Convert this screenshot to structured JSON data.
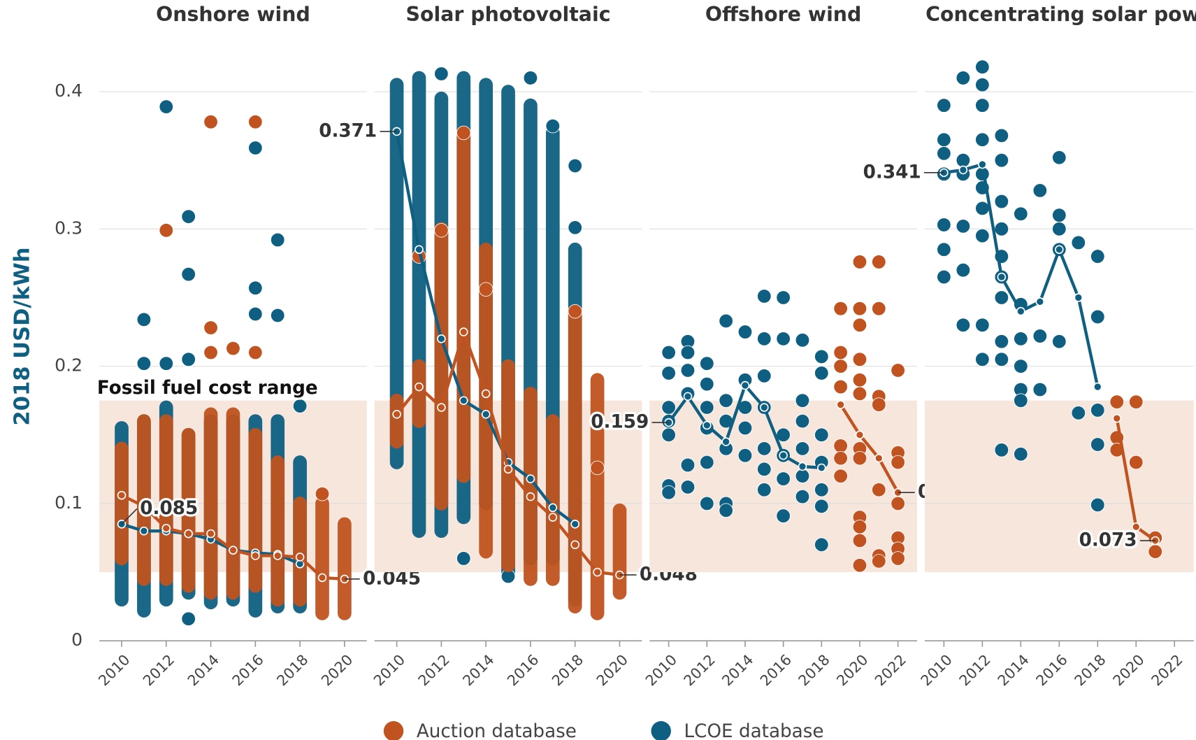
{
  "ylabel": "2018 USD/kWh",
  "ylim": [
    0,
    0.43
  ],
  "yticks": [
    0,
    0.1,
    0.2,
    0.3,
    0.4
  ],
  "grid": true,
  "fossil_range": {
    "label": "Fossil fuel cost range",
    "range": [
      0.05,
      0.175
    ],
    "color": "#f6e6dc"
  },
  "legend": [
    {
      "name": "Auction database",
      "color": "#c0531f"
    },
    {
      "name": "LCOE database",
      "color": "#0e5f82"
    }
  ],
  "chart_data": [
    {
      "type": "scatter",
      "title": "Onshore wind",
      "x": [
        2010,
        2011,
        2012,
        2013,
        2014,
        2015,
        2016,
        2017,
        2018,
        2019,
        2020
      ],
      "xlim": [
        2009,
        2021
      ],
      "xticks": [
        2010,
        2012,
        2014,
        2016,
        2018,
        2020
      ],
      "lcoe_line": [
        0.085,
        0.08,
        0.08,
        0.078,
        0.074,
        0.066,
        0.064,
        0.063,
        0.056,
        null,
        null
      ],
      "auction_line": [
        0.106,
        0.098,
        0.082,
        0.078,
        0.078,
        0.066,
        0.062,
        0.062,
        0.061,
        0.046,
        0.045
      ],
      "lcoe_range": {
        "low": [
          0.03,
          0.022,
          0.03,
          0.035,
          0.028,
          0.03,
          0.022,
          0.025,
          0.025,
          null,
          null
        ],
        "high": [
          0.155,
          0.16,
          0.17,
          0.15,
          0.16,
          0.16,
          0.16,
          0.16,
          0.13,
          null,
          null
        ]
      },
      "auction_range": {
        "low": [
          0.06,
          0.045,
          0.045,
          0.04,
          0.035,
          0.035,
          0.04,
          0.03,
          0.03,
          0.02,
          0.02
        ],
        "high": [
          0.14,
          0.16,
          0.16,
          0.15,
          0.165,
          0.165,
          0.15,
          0.13,
          0.1,
          0.1,
          0.085
        ]
      },
      "lcoe_points": {
        "x": [
          2011,
          2011,
          2012,
          2012,
          2013,
          2013,
          2013,
          2013,
          2016,
          2016,
          2016,
          2017,
          2017,
          2018
        ],
        "y": [
          0.234,
          0.202,
          0.389,
          0.202,
          0.309,
          0.267,
          0.205,
          0.016,
          0.359,
          0.257,
          0.238,
          0.292,
          0.237,
          0.171
        ]
      },
      "auction_points": {
        "x": [
          2012,
          2014,
          2014,
          2014,
          2015,
          2016,
          2016,
          2019
        ],
        "y": [
          0.299,
          0.378,
          0.228,
          0.21,
          0.213,
          0.378,
          0.21,
          0.107
        ]
      }
    },
    {
      "type": "scatter",
      "title": "Solar photovoltaic",
      "x": [
        2010,
        2011,
        2012,
        2013,
        2014,
        2015,
        2016,
        2017,
        2018,
        2019,
        2020
      ],
      "xlim": [
        2009,
        2021
      ],
      "xticks": [
        2010,
        2012,
        2014,
        2016,
        2018,
        2020
      ],
      "lcoe_line": [
        0.371,
        0.285,
        0.22,
        0.175,
        0.165,
        0.13,
        0.118,
        0.097,
        0.085,
        null,
        null
      ],
      "auction_line": [
        0.165,
        0.185,
        0.17,
        0.225,
        0.18,
        0.125,
        0.105,
        0.09,
        0.07,
        0.05,
        0.048
      ],
      "lcoe_range": {
        "low": [
          0.13,
          0.08,
          0.08,
          0.09,
          0.1,
          0.05,
          0.06,
          0.06,
          0.03,
          null,
          null
        ],
        "high": [
          0.405,
          0.41,
          0.395,
          0.41,
          0.405,
          0.4,
          0.39,
          0.37,
          0.285,
          null,
          null
        ]
      },
      "auction_range": {
        "low": [
          0.145,
          0.16,
          0.1,
          0.12,
          0.065,
          0.055,
          0.045,
          0.045,
          0.025,
          0.02,
          0.035
        ],
        "high": [
          0.175,
          0.2,
          0.3,
          0.37,
          0.285,
          0.2,
          0.18,
          0.16,
          0.24,
          0.19,
          0.095
        ]
      },
      "lcoe_points": {
        "x": [
          2012,
          2013,
          2015,
          2016,
          2017,
          2018,
          2018
        ],
        "y": [
          0.413,
          0.06,
          0.047,
          0.41,
          0.375,
          0.346,
          0.301
        ]
      },
      "auction_points": {
        "x": [
          2011,
          2012,
          2013,
          2014,
          2018,
          2019
        ],
        "y": [
          0.28,
          0.299,
          0.37,
          0.256,
          0.24,
          0.126
        ]
      }
    },
    {
      "type": "scatter",
      "title": "Offshore wind",
      "x": [
        2010,
        2011,
        2012,
        2013,
        2014,
        2015,
        2016,
        2017,
        2018,
        2019,
        2020,
        2021,
        2022
      ],
      "xlim": [
        2009,
        2023
      ],
      "xticks": [
        2010,
        2012,
        2014,
        2016,
        2018,
        2020,
        2022
      ],
      "lcoe_line": [
        0.159,
        0.178,
        0.157,
        0.145,
        0.186,
        0.17,
        0.135,
        0.127,
        0.126,
        null,
        null,
        null,
        null
      ],
      "auction_line": [
        null,
        null,
        null,
        null,
        null,
        null,
        null,
        null,
        null,
        0.172,
        0.15,
        0.133,
        0.108
      ],
      "lcoe_points": {
        "x": [
          2010,
          2010,
          2010,
          2010,
          2010,
          2010,
          2010,
          2011,
          2011,
          2011,
          2011,
          2011,
          2011,
          2012,
          2012,
          2012,
          2012,
          2012,
          2012,
          2013,
          2013,
          2013,
          2013,
          2013,
          2013,
          2014,
          2014,
          2014,
          2014,
          2014,
          2015,
          2015,
          2015,
          2015,
          2015,
          2015,
          2015,
          2016,
          2016,
          2016,
          2016,
          2016,
          2016,
          2017,
          2017,
          2017,
          2017,
          2017,
          2017,
          2018,
          2018,
          2018,
          2018,
          2018,
          2018,
          2018
        ],
        "y": [
          0.21,
          0.195,
          0.17,
          0.16,
          0.15,
          0.113,
          0.108,
          0.218,
          0.21,
          0.197,
          0.18,
          0.128,
          0.112,
          0.202,
          0.187,
          0.17,
          0.155,
          0.13,
          0.1,
          0.233,
          0.175,
          0.16,
          0.14,
          0.1,
          0.095,
          0.225,
          0.19,
          0.17,
          0.155,
          0.135,
          0.251,
          0.22,
          0.193,
          0.17,
          0.14,
          0.125,
          0.11,
          0.25,
          0.22,
          0.15,
          0.135,
          0.118,
          0.091,
          0.219,
          0.175,
          0.16,
          0.14,
          0.12,
          0.105,
          0.207,
          0.195,
          0.15,
          0.13,
          0.11,
          0.098,
          0.07
        ]
      },
      "auction_points": {
        "x": [
          2019,
          2019,
          2019,
          2019,
          2019,
          2019,
          2019,
          2020,
          2020,
          2020,
          2020,
          2020,
          2020,
          2020,
          2020,
          2020,
          2020,
          2020,
          2020,
          2021,
          2021,
          2021,
          2021,
          2021,
          2021,
          2021,
          2022,
          2022,
          2022,
          2022,
          2022,
          2022,
          2022
        ],
        "y": [
          0.242,
          0.21,
          0.2,
          0.185,
          0.142,
          0.133,
          0.12,
          0.276,
          0.242,
          0.23,
          0.205,
          0.19,
          0.18,
          0.14,
          0.133,
          0.09,
          0.083,
          0.073,
          0.055,
          0.276,
          0.242,
          0.178,
          0.172,
          0.11,
          0.062,
          0.058,
          0.197,
          0.137,
          0.13,
          0.1,
          0.075,
          0.067,
          0.06
        ]
      }
    },
    {
      "type": "scatter",
      "title": "Concentrating solar power",
      "x": [
        2010,
        2011,
        2012,
        2013,
        2014,
        2015,
        2016,
        2017,
        2018,
        2019,
        2020,
        2021,
        2022
      ],
      "xlim": [
        2009,
        2023
      ],
      "xticks": [
        2010,
        2012,
        2014,
        2016,
        2018,
        2020,
        2022
      ],
      "lcoe_line": [
        0.341,
        0.343,
        0.347,
        0.265,
        0.24,
        0.247,
        0.285,
        0.25,
        0.185,
        null,
        null,
        null,
        null
      ],
      "auction_line": [
        null,
        null,
        null,
        null,
        null,
        null,
        null,
        null,
        null,
        0.162,
        0.083,
        0.073,
        null
      ],
      "lcoe_points": {
        "x": [
          2010,
          2010,
          2010,
          2010,
          2010,
          2010,
          2010,
          2011,
          2011,
          2011,
          2011,
          2011,
          2011,
          2012,
          2012,
          2012,
          2012,
          2012,
          2012,
          2012,
          2012,
          2012,
          2012,
          2013,
          2013,
          2013,
          2013,
          2013,
          2013,
          2013,
          2013,
          2013,
          2013,
          2014,
          2014,
          2014,
          2014,
          2014,
          2014,
          2014,
          2015,
          2015,
          2015,
          2016,
          2016,
          2016,
          2016,
          2016,
          2017,
          2017,
          2018,
          2018,
          2018,
          2018,
          2018
        ],
        "y": [
          0.39,
          0.365,
          0.355,
          0.34,
          0.303,
          0.285,
          0.265,
          0.41,
          0.35,
          0.34,
          0.302,
          0.27,
          0.23,
          0.418,
          0.405,
          0.39,
          0.365,
          0.34,
          0.33,
          0.315,
          0.295,
          0.23,
          0.205,
          0.368,
          0.35,
          0.32,
          0.3,
          0.28,
          0.265,
          0.25,
          0.218,
          0.205,
          0.139,
          0.311,
          0.245,
          0.22,
          0.2,
          0.183,
          0.175,
          0.136,
          0.328,
          0.222,
          0.183,
          0.352,
          0.31,
          0.3,
          0.285,
          0.218,
          0.29,
          0.166,
          0.28,
          0.236,
          0.168,
          0.143,
          0.099
        ]
      },
      "auction_points": {
        "x": [
          2019,
          2019,
          2019,
          2020,
          2020,
          2021,
          2021
        ],
        "y": [
          0.174,
          0.148,
          0.139,
          0.174,
          0.13,
          0.075,
          0.065
        ]
      }
    }
  ]
}
